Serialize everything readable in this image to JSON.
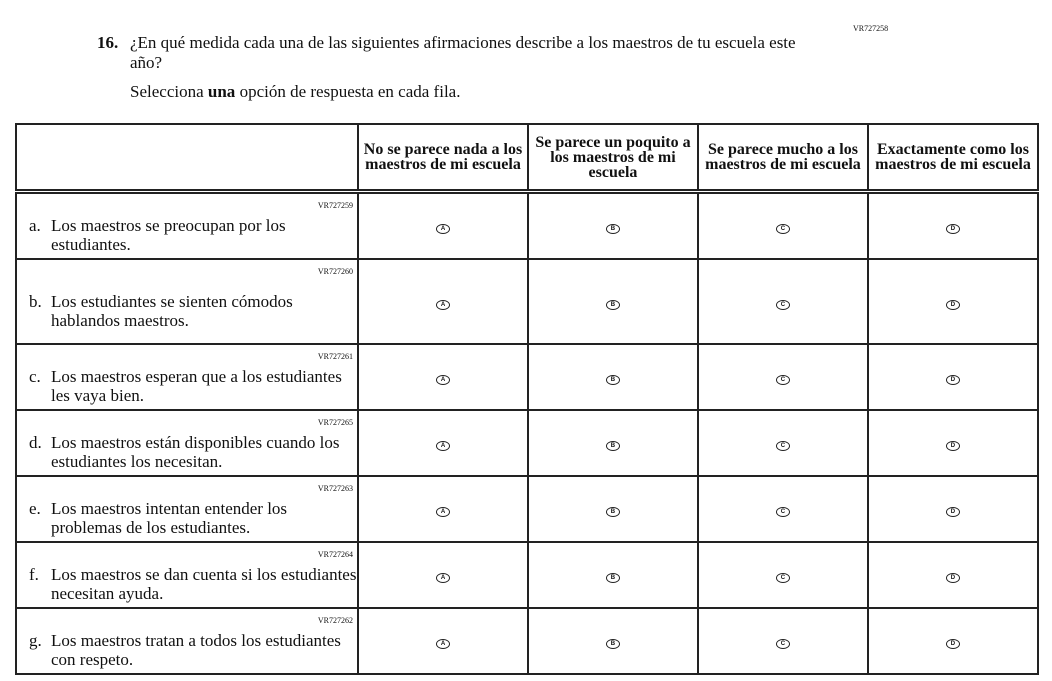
{
  "question": {
    "code": "VR727258",
    "number": "16.",
    "text": "¿En qué medida cada una de las siguientes afirmaciones describe a los maestros de tu escuela este año?",
    "instruction_pre": "Selecciona ",
    "instruction_bold": "una",
    "instruction_post": " opción de respuesta en cada fila."
  },
  "columns": [
    "No se parece nada a los maestros de mi escuela",
    "Se parece un poquito a los maestros de mi escuela",
    "Se parece mucho a los maestros de mi escuela",
    "Exactamente como los maestros de mi escuela"
  ],
  "bubbles": [
    "A",
    "B",
    "C",
    "D"
  ],
  "rows": [
    {
      "code": "VR727259",
      "letter": "a.",
      "text": "Los maestros se preocupan por los estudiantes.",
      "h": 65
    },
    {
      "code": "VR727260",
      "letter": "b.",
      "text": "Los estudiantes se sienten cómodos hablandos maestros.",
      "h": 85
    },
    {
      "code": "VR727261",
      "letter": "c.",
      "text": "Los maestros esperan que a los estudiantes les vaya bien.",
      "h": 66
    },
    {
      "code": "VR727265",
      "letter": "d.",
      "text": "Los maestros están disponibles cuando los estudiantes los necesitan.",
      "h": 66
    },
    {
      "code": "VR727263",
      "letter": "e.",
      "text": "Los maestros intentan entender los problemas de los estudiantes.",
      "h": 66
    },
    {
      "code": "VR727264",
      "letter": "f.",
      "text": "Los maestros se dan cuenta si los estudiantes necesitan ayuda.",
      "h": 66
    },
    {
      "code": "VR727262",
      "letter": "g.",
      "text": "Los maestros tratan a todos los estudiantes con respeto.",
      "h": 65
    }
  ]
}
